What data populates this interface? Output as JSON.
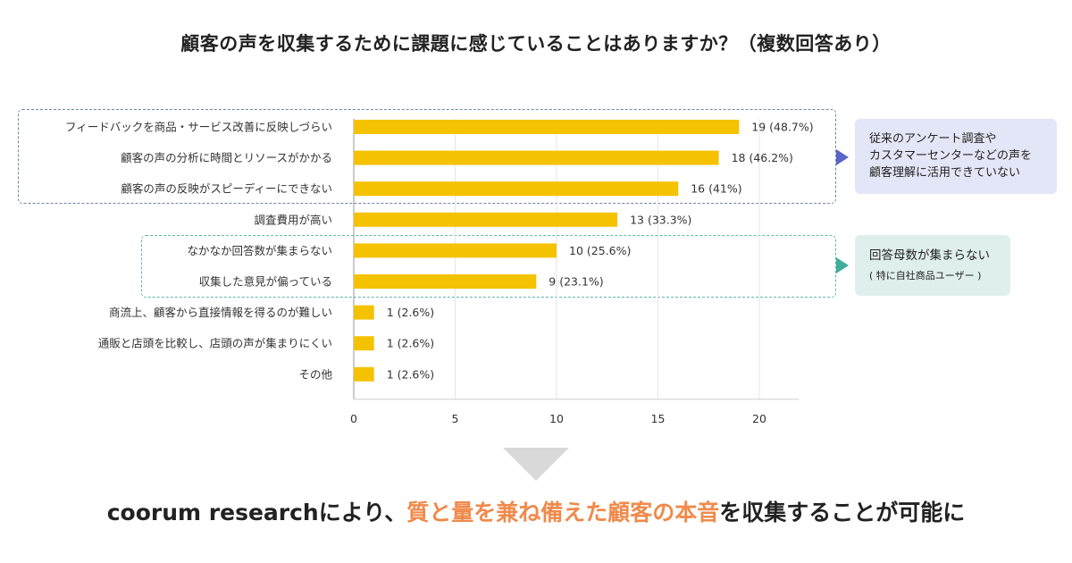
{
  "title": "顧客の声を収集するために課題に感じていることはありますか？（複数回答あり）",
  "chart_data": {
    "type": "bar",
    "orientation": "horizontal",
    "title": "顧客の声を収集するために課題に感じていることはありますか？（複数回答あり）",
    "categories": [
      "フィードバックを商品・サービス改善に反映しづらい",
      "顧客の声の分析に時間とリソースがかかる",
      "顧客の声の反映がスピーディーにできない",
      "調査費用が高い",
      "なかなか回答数が集まらない",
      "収集した意見が偏っている",
      "商流上、顧客から直接情報を得るのが難しい",
      "通販と店頭を比較し、店頭の声が集まりにくい",
      "その他"
    ],
    "values": [
      19,
      18,
      16,
      13,
      10,
      9,
      1,
      1,
      1
    ],
    "data_labels": [
      "19 (48.7%)",
      "18 (46.2%)",
      "16 (41%)",
      "13 (33.3%)",
      "10 (25.6%)",
      "9 (23.1%)",
      "1 (2.6%)",
      "1 (2.6%)",
      "1 (2.6%)"
    ],
    "xlim": [
      0,
      22
    ],
    "xticks": [
      0,
      5,
      10,
      15,
      20
    ],
    "grid": true,
    "bar_color": "#f5c200"
  },
  "callouts": {
    "blue": {
      "text": "従来のアンケート調査や\nカスタマーセンターなどの声を\n顧客理解に活用できていない"
    },
    "teal": {
      "text": "回答母数が集まらない",
      "sub": "( 特に自社商品ユーザー )"
    }
  },
  "conclusion": {
    "prefix": "coorum researchにより、",
    "highlight": "質と量を兼ね備えた顧客の本音",
    "suffix": "を収集することが可能に",
    "highlight_color": "#f08a4b"
  }
}
